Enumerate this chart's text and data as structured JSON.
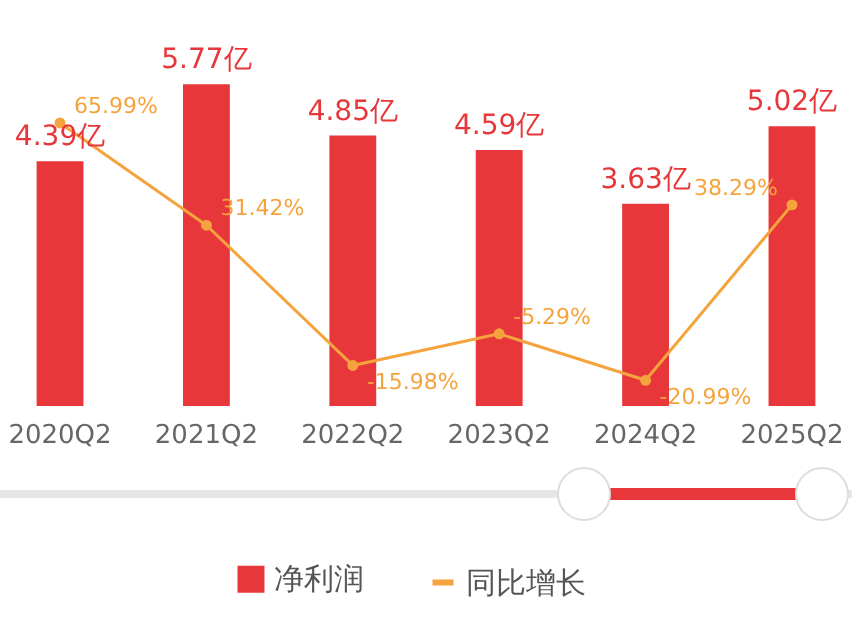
{
  "chart_data": {
    "type": "bar",
    "categories": [
      "2020Q2",
      "2021Q2",
      "2022Q2",
      "2023Q2",
      "2024Q2",
      "2025Q2"
    ],
    "series": [
      {
        "name": "净利润",
        "color": "#e8373a",
        "values": [
          4.39,
          5.77,
          4.85,
          4.59,
          3.63,
          5.02
        ],
        "value_labels": [
          "4.39亿",
          "5.77亿",
          "4.85亿",
          "4.59亿",
          "3.63亿",
          "5.02亿"
        ]
      },
      {
        "name": "同比增长",
        "type": "line",
        "axis": "y2",
        "color": "#f5a33c",
        "values": [
          65.99,
          31.42,
          -15.98,
          -5.29,
          -20.99,
          38.29
        ],
        "value_labels": [
          "65.99%",
          "31.42%",
          "-15.98%",
          "-5.29%",
          "-20.99%",
          "38.29%"
        ]
      }
    ],
    "tick_labels": "x",
    "legend": "bottom",
    "marker": "circle"
  }
}
